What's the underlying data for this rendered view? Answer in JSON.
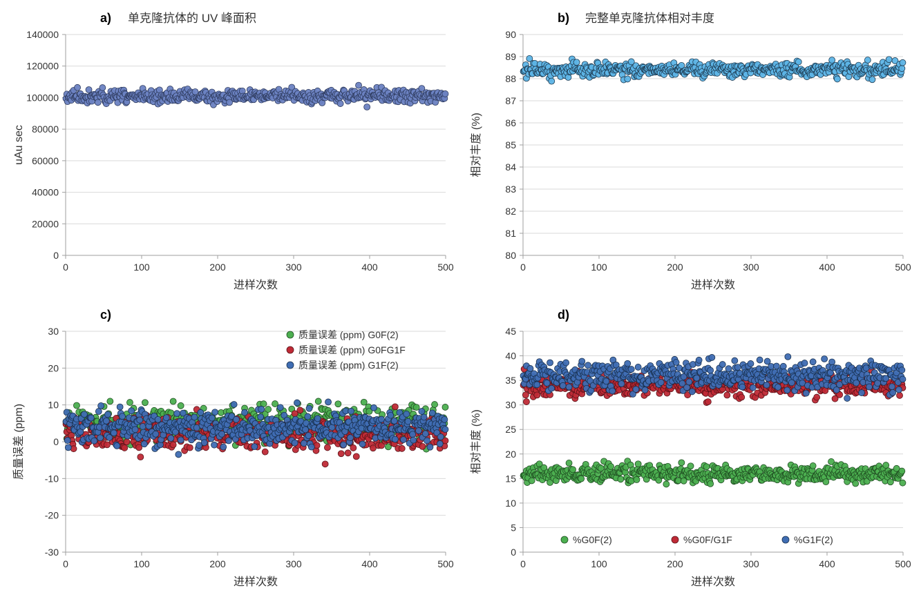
{
  "layout": {
    "rows": 2,
    "cols": 2
  },
  "colors": {
    "background": "#ffffff",
    "axis": "#9f9f9f",
    "grid": "#d9d9d9",
    "text": "#404040",
    "panelA_marker": "#6b82c2",
    "panelA_edge": "#2e3b5e",
    "panelB_marker": "#5db4e6",
    "panelB_edge": "#1d3a50",
    "green": "#4caf50",
    "green_edge": "#1f4d21",
    "red": "#bf2a36",
    "red_edge": "#5a1218",
    "blue": "#3f6db3",
    "blue_edge": "#18304f"
  },
  "panels": {
    "a": {
      "label": "a)",
      "title": "单克隆抗体的 UV 峰面积",
      "xlabel": "进样次数",
      "ylabel": "uAu sec",
      "xlim": [
        0,
        500
      ],
      "xticks": [
        0,
        100,
        200,
        300,
        400,
        500
      ],
      "ylim": [
        0,
        140000
      ],
      "yticks": [
        0,
        20000,
        40000,
        60000,
        80000,
        100000,
        120000,
        140000
      ],
      "series": [
        {
          "colorKey": "panelA_marker",
          "edgeKey": "panelA_edge",
          "n": 500,
          "mean": 101000,
          "spread": 3500,
          "marker_size": 4.5
        }
      ]
    },
    "b": {
      "label": "b)",
      "title": "完整单克隆抗体相对丰度",
      "xlabel": "进样次数",
      "ylabel": "相对丰度 (%)",
      "xlim": [
        0,
        500
      ],
      "xticks": [
        0,
        100,
        200,
        300,
        400,
        500
      ],
      "ylim": [
        80,
        90
      ],
      "yticks": [
        80,
        81,
        82,
        83,
        84,
        85,
        86,
        87,
        88,
        89,
        90
      ],
      "series": [
        {
          "colorKey": "panelB_marker",
          "edgeKey": "panelB_edge",
          "n": 500,
          "mean": 88.4,
          "spread": 0.3,
          "marker_size": 4.5
        }
      ]
    },
    "c": {
      "label": "c)",
      "title": "",
      "xlabel": "进样次数",
      "ylabel": "质量误差 (ppm)",
      "xlim": [
        0,
        500
      ],
      "xticks": [
        0,
        100,
        200,
        300,
        400,
        500
      ],
      "ylim": [
        -30,
        30
      ],
      "yticks": [
        -30,
        -20,
        -10,
        0,
        10,
        20,
        30
      ],
      "legend": {
        "position": "top-right",
        "items": [
          {
            "label": "质量误差 (ppm) G0F(2)",
            "colorKey": "green",
            "edgeKey": "green_edge"
          },
          {
            "label": "质量误差 (ppm) G0FG1F",
            "colorKey": "red",
            "edgeKey": "red_edge"
          },
          {
            "label": "质量误差 (ppm) G1F(2)",
            "colorKey": "blue",
            "edgeKey": "blue_edge"
          }
        ]
      },
      "series": [
        {
          "colorKey": "green",
          "edgeKey": "green_edge",
          "n": 500,
          "mean": 5,
          "spread": 4,
          "marker_size": 4.5
        },
        {
          "colorKey": "red",
          "edgeKey": "red_edge",
          "n": 500,
          "mean": 2,
          "spread": 4,
          "marker_size": 4.5
        },
        {
          "colorKey": "blue",
          "edgeKey": "blue_edge",
          "n": 500,
          "mean": 4,
          "spread": 4,
          "marker_size": 4.5
        }
      ]
    },
    "d": {
      "label": "d)",
      "title": "",
      "xlabel": "进样次数",
      "ylabel": "相对丰度 (%)",
      "xlim": [
        0,
        500
      ],
      "xticks": [
        0,
        100,
        200,
        300,
        400,
        500
      ],
      "ylim": [
        0,
        45
      ],
      "yticks": [
        0,
        5,
        10,
        15,
        20,
        25,
        30,
        35,
        40,
        45
      ],
      "legend": {
        "position": "bottom-center",
        "items": [
          {
            "label": "%G0F(2)",
            "colorKey": "green",
            "edgeKey": "green_edge"
          },
          {
            "label": "%G0F/G1F",
            "colorKey": "red",
            "edgeKey": "red_edge"
          },
          {
            "label": "%G1F(2)",
            "colorKey": "blue",
            "edgeKey": "blue_edge"
          }
        ]
      },
      "series": [
        {
          "colorKey": "green",
          "edgeKey": "green_edge",
          "n": 500,
          "mean": 16,
          "spread": 1.5,
          "marker_size": 4.5
        },
        {
          "colorKey": "red",
          "edgeKey": "red_edge",
          "n": 500,
          "mean": 34,
          "spread": 2,
          "marker_size": 4.5
        },
        {
          "colorKey": "blue",
          "edgeKey": "blue_edge",
          "n": 500,
          "mean": 36,
          "spread": 2.5,
          "marker_size": 4.5
        }
      ]
    }
  }
}
